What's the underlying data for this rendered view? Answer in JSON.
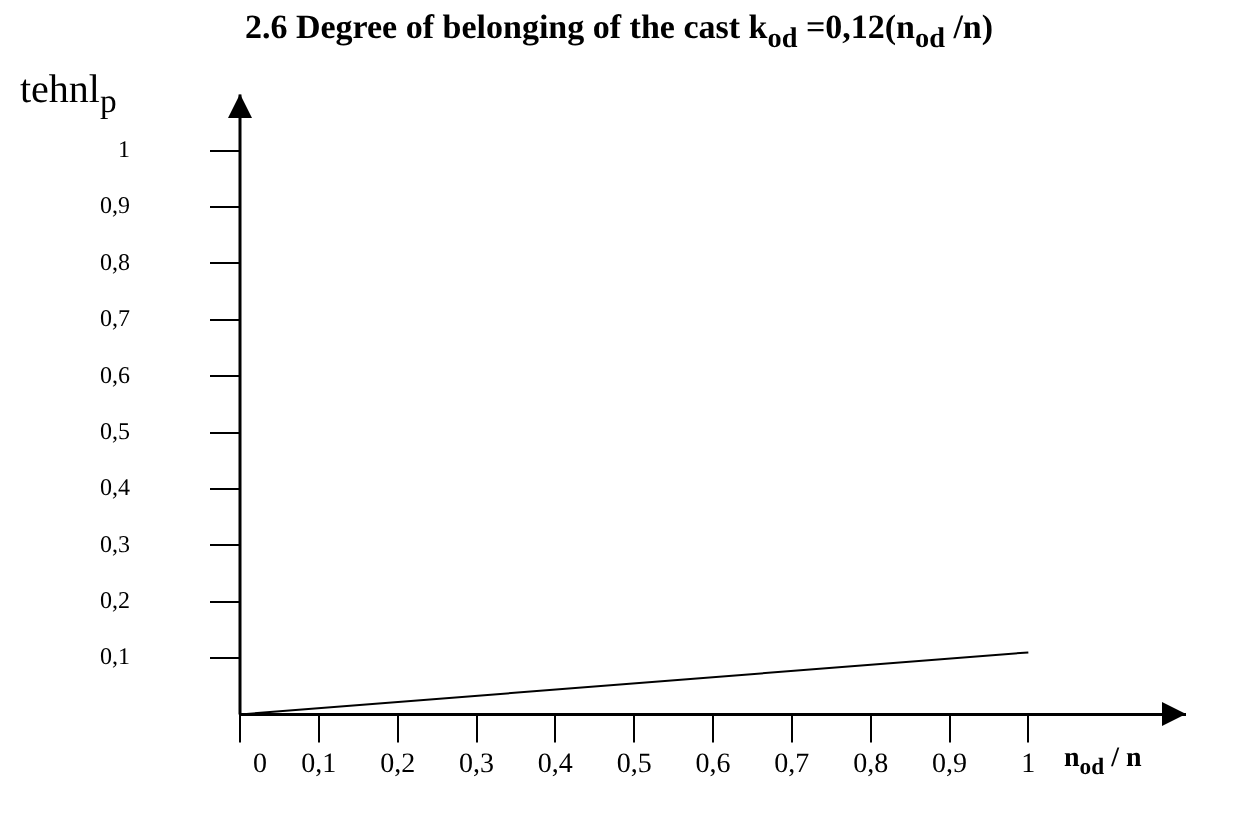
{
  "chart_data": {
    "type": "line",
    "title": "2.6 Degree of belonging of  the cast k$_{od}$ =0,12(n$_{od}$ /n)",
    "xlabel": "n$_{od}$ / n",
    "ylabel": "tehnl$_{p}$",
    "x": [
      0,
      1
    ],
    "series": [
      {
        "color": "#000000",
        "values": [
          0,
          0.11
        ]
      }
    ],
    "xlim": [
      0,
      1.2
    ],
    "ylim": [
      0,
      1.1
    ],
    "xticks": [
      0,
      {
        "value": 0.1,
        "label": "0,1"
      },
      {
        "value": 0.2,
        "label": "0,2"
      },
      {
        "value": 0.3,
        "label": "0,3"
      },
      {
        "value": 0.4,
        "label": "0,4"
      },
      {
        "value": 0.5,
        "label": "0,5"
      },
      {
        "value": 0.6,
        "label": "0,6"
      },
      {
        "value": 0.7,
        "label": "0,7"
      },
      {
        "value": 0.8,
        "label": "0,8"
      },
      {
        "value": 0.9,
        "label": "0,9"
      },
      1
    ],
    "yticks": [
      {
        "value": 0.1,
        "label": "0,1"
      },
      {
        "value": 0.2,
        "label": "0,2"
      },
      {
        "value": 0.3,
        "label": "0,3"
      },
      {
        "value": 0.4,
        "label": "0,4"
      },
      {
        "value": 0.5,
        "label": "0,5"
      },
      {
        "value": 0.6,
        "label": "0,6"
      },
      {
        "value": 0.7,
        "label": "0,7"
      },
      {
        "value": 0.8,
        "label": "0,8"
      },
      {
        "value": 0.9,
        "label": "0,9"
      },
      1
    ],
    "marker": "none",
    "line_style": "solid",
    "legend": false
  }
}
